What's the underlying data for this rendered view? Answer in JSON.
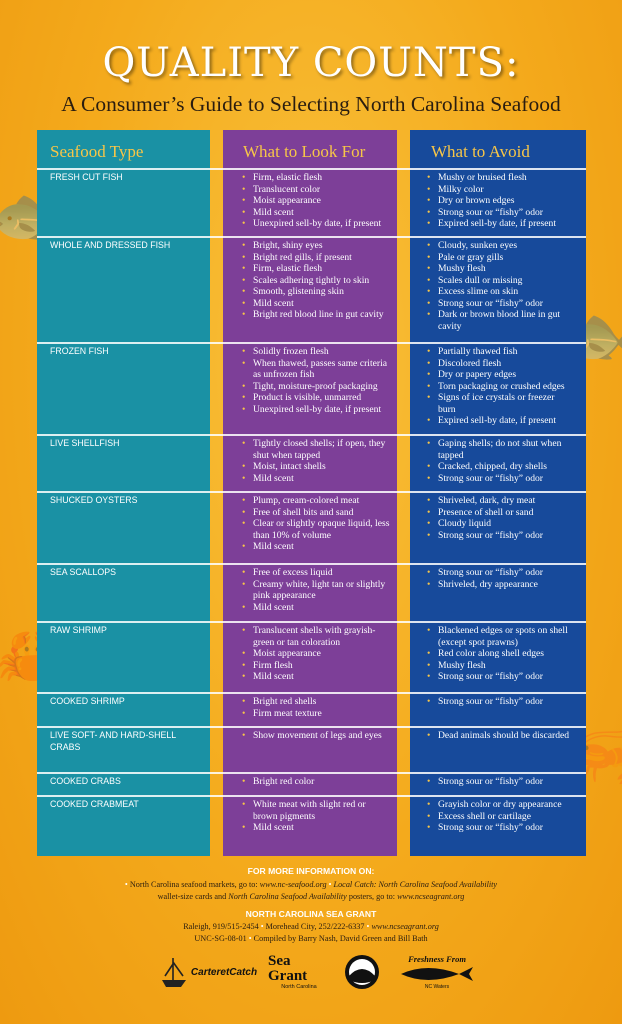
{
  "title": "QUALITY COUNTS:",
  "subtitle": "A Consumer’s Guide to Selecting North Carolina Seafood",
  "headers": {
    "type": "Seafood Type",
    "look": "What to Look For",
    "avoid": "What to Avoid"
  },
  "rows": [
    {
      "type": "FRESH CUT FISH",
      "look": [
        "Firm, elastic flesh",
        "Translucent color",
        "Moist appearance",
        "Mild scent",
        "Unexpired sell-by date, if present"
      ],
      "avoid": [
        "Mushy or bruised flesh",
        "Milky color",
        "Dry or brown edges",
        "Strong sour or “fishy” odor",
        "Expired sell-by date, if present"
      ]
    },
    {
      "type": "WHOLE AND DRESSED FISH",
      "look": [
        "Bright, shiny eyes",
        "Bright red gills, if present",
        "Firm, elastic flesh",
        "Scales adhering tightly to skin",
        "Smooth, glistening skin",
        "Mild scent",
        "Bright red blood line in gut cavity"
      ],
      "avoid": [
        "Cloudy, sunken eyes",
        "Pale or gray gills",
        "Mushy flesh",
        "Scales dull or missing",
        "Excess slime on skin",
        "Strong sour or “fishy” odor",
        "Dark or brown blood line in gut cavity"
      ]
    },
    {
      "type": "FROZEN FISH",
      "look": [
        "Solidly frozen flesh",
        "When thawed, passes same criteria as unfrozen fish",
        "Tight, moisture-proof packaging",
        "Product is visible, unmarred",
        "Unexpired sell-by date, if present"
      ],
      "avoid": [
        "Partially thawed fish",
        "Discolored flesh",
        "Dry or papery edges",
        "Torn packaging or crushed edges",
        "Signs of ice crystals or freezer burn",
        "Expired sell-by date, if present"
      ]
    },
    {
      "type": "LIVE SHELLFISH",
      "look": [
        "Tightly closed shells; if open, they shut when tapped",
        "Moist, intact shells",
        "Mild scent"
      ],
      "avoid": [
        "Gaping shells; do not shut when tapped",
        "Cracked, chipped, dry shells",
        "Strong sour or “fishy” odor"
      ]
    },
    {
      "type": "SHUCKED OYSTERS",
      "look": [
        "Plump, cream-colored meat",
        "Free of shell bits and sand",
        "Clear or slightly opaque liquid, less than 10% of volume",
        "Mild scent"
      ],
      "avoid": [
        "Shriveled, dark, dry meat",
        "Presence of shell or sand",
        "Cloudy liquid",
        "Strong sour or “fishy” odor"
      ]
    },
    {
      "type": "SEA SCALLOPS",
      "look": [
        "Free of excess liquid",
        "Creamy white, light tan or slightly pink appearance",
        "Mild scent"
      ],
      "avoid": [
        "Strong sour or “fishy” odor",
        "Shriveled, dry appearance"
      ]
    },
    {
      "type": "RAW SHRIMP",
      "look": [
        "Translucent shells with grayish-green or tan coloration",
        "Moist appearance",
        "Firm flesh",
        "Mild scent"
      ],
      "avoid": [
        "Blackened edges or spots on shell (except spot prawns)",
        "Red color along shell edges",
        "Mushy flesh",
        "Strong sour or “fishy” odor"
      ]
    },
    {
      "type": "COOKED SHRIMP",
      "look": [
        "Bright red shells",
        "Firm meat texture"
      ],
      "avoid": [
        "Strong sour or “fishy” odor"
      ]
    },
    {
      "type": "LIVE SOFT- AND HARD-SHELL CRABS",
      "look": [
        "Show movement of legs and eyes"
      ],
      "avoid": [
        "Dead animals should be discarded"
      ]
    },
    {
      "type": "COOKED CRABS",
      "look": [
        "Bright red color"
      ],
      "avoid": [
        "Strong sour or “fishy” odor"
      ]
    },
    {
      "type": "COOKED CRABMEAT",
      "look": [
        "White meat with slight red or brown pigments",
        "Mild scent"
      ],
      "avoid": [
        "Grayish color or dry appearance",
        "Excess shell or cartilage",
        "Strong sour or “fishy” odor"
      ]
    }
  ],
  "footer": {
    "more_info_heading": "FOR MORE INFORMATION ON:",
    "line1a": "North Carolina seafood markets, go to: ",
    "line1b": "www.nc-seafood.org",
    "line1c": "Local Catch: North Carolina Seafood Availability",
    "line2a": "wallet-size cards and ",
    "line2b": "North Carolina Seafood Availability",
    "line2c": " posters, go to: ",
    "line2d": "www.ncseagrant.org",
    "org_heading": "NORTH CAROLINA SEA GRANT",
    "contact_raleigh": "Raleigh, 919/515-2454",
    "contact_morehead": "Morehead City, 252/222-6337",
    "contact_web": "www.ncseagrant.org",
    "pub_code": "UNC-SG-08-01",
    "compiled_by": "Compiled by Barry Nash, David Green and Bill Bath"
  },
  "logos": {
    "carteret": "CarteretCatch",
    "seagrant_main": "Sea Grant",
    "seagrant_sub": "North Carolina",
    "noaa": "NOAA",
    "freshness": "Freshness From",
    "freshness_sub": "NC Waters"
  }
}
